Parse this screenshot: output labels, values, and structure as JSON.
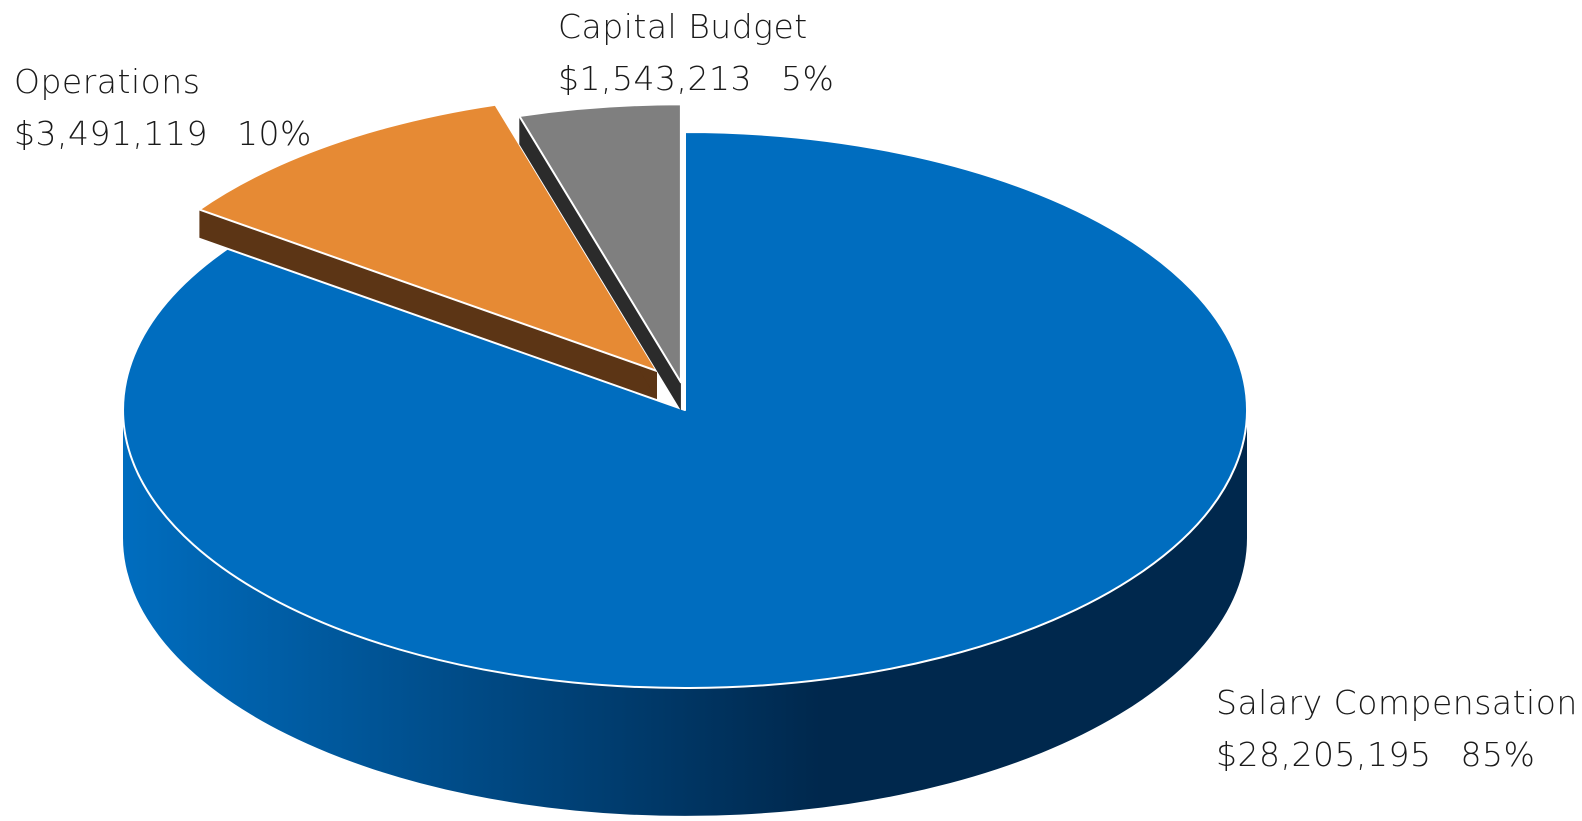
{
  "chart_data": {
    "type": "pie",
    "style": "3d-exploded",
    "slices": [
      {
        "name": "Salary Compensation",
        "value": 28205195,
        "value_label": "$28,205,195",
        "percent": 85,
        "percent_label": "85%",
        "color": "#006dbf",
        "side_color": "#00284d"
      },
      {
        "name": "Operations",
        "value": 3491119,
        "value_label": "$3,491,119",
        "percent": 10,
        "percent_label": "10%",
        "color": "#e68a34",
        "side_color": "#5c3515"
      },
      {
        "name": "Capital Budget",
        "value": 1543213,
        "value_label": "$1,543,213",
        "percent": 5,
        "percent_label": "5%",
        "color": "#7f7f7f",
        "side_color": "#2b2b2b"
      }
    ]
  }
}
